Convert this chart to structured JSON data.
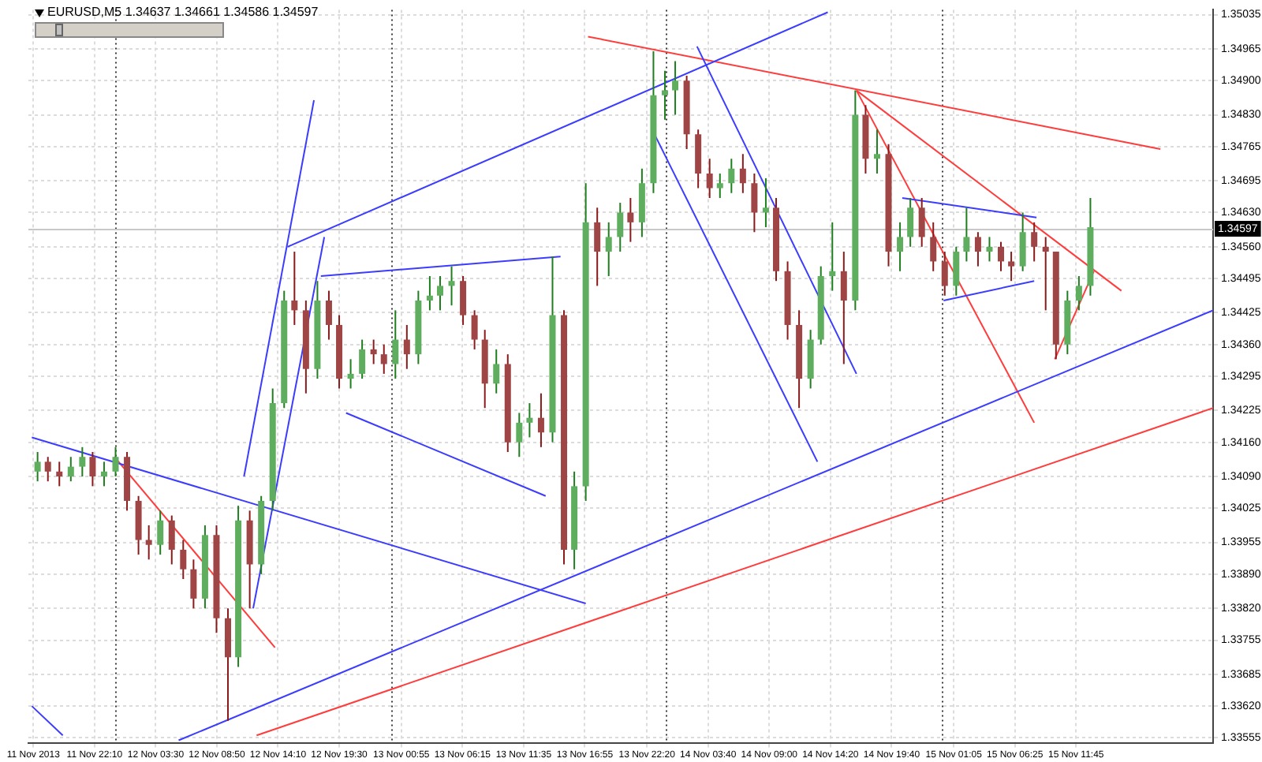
{
  "chart_data": {
    "type": "candlestick",
    "title": "EURUSD,M5 1.34637 1.34661 1.34586 1.34597",
    "x": [
      "2013-11-11T17:12",
      "2013-11-11T18:06",
      "2013-11-11T19:06",
      "2013-11-11T20:06",
      "2013-11-11T21:06",
      "2013-11-11T22:00",
      "2013-11-11T23:00",
      "2013-11-12T00:00",
      "2013-11-12T01:00",
      "2013-11-12T02:00",
      "2013-11-12T02:54",
      "2013-11-12T03:54",
      "2013-11-12T04:54",
      "2013-11-12T05:54",
      "2013-11-12T06:48",
      "2013-11-12T07:48",
      "2013-11-12T08:48",
      "2013-11-12T09:48",
      "2013-11-12T10:42",
      "2013-11-12T11:42",
      "2013-11-12T12:42",
      "2013-11-12T13:42",
      "2013-11-12T14:42",
      "2013-11-12T15:36",
      "2013-11-12T16:36",
      "2013-11-12T17:36",
      "2013-11-12T18:36",
      "2013-11-12T19:30",
      "2013-11-12T20:30",
      "2013-11-12T21:30",
      "2013-11-12T22:30",
      "2013-11-12T23:24",
      "2013-11-13T00:24",
      "2013-11-13T01:24",
      "2013-11-13T02:24",
      "2013-11-13T03:24",
      "2013-11-13T04:18",
      "2013-11-13T05:18",
      "2013-11-13T06:18",
      "2013-11-13T07:18",
      "2013-11-13T08:12",
      "2013-11-13T09:12",
      "2013-11-13T10:12",
      "2013-11-13T11:12",
      "2013-11-13T12:06",
      "2013-11-13T13:06",
      "2013-11-13T14:06",
      "2013-11-13T15:06",
      "2013-11-13T16:00",
      "2013-11-13T17:00",
      "2013-11-13T18:00",
      "2013-11-13T19:00",
      "2013-11-13T20:00",
      "2013-11-13T20:54",
      "2013-11-13T21:54",
      "2013-11-13T22:54",
      "2013-11-13T23:54",
      "2013-11-14T00:48",
      "2013-11-14T01:48",
      "2013-11-14T02:48",
      "2013-11-14T03:48",
      "2013-11-14T04:42",
      "2013-11-14T05:42",
      "2013-11-14T06:42",
      "2013-11-14T07:42",
      "2013-11-14T08:42",
      "2013-11-14T09:36",
      "2013-11-14T10:36",
      "2013-11-14T11:36",
      "2013-11-14T12:36",
      "2013-11-14T13:30",
      "2013-11-14T14:30",
      "2013-11-14T15:30",
      "2013-11-14T16:30",
      "2013-11-14T17:24",
      "2013-11-14T18:24",
      "2013-11-14T19:24",
      "2013-11-14T20:24",
      "2013-11-14T21:18",
      "2013-11-14T22:18",
      "2013-11-14T23:18",
      "2013-11-15T00:18",
      "2013-11-15T01:18",
      "2013-11-15T02:12",
      "2013-11-15T03:12",
      "2013-11-15T04:12",
      "2013-11-15T05:12",
      "2013-11-15T06:06",
      "2013-11-15T07:06",
      "2013-11-15T08:06",
      "2013-11-15T09:06",
      "2013-11-15T10:00",
      "2013-11-15T11:00",
      "2013-11-15T12:00",
      "2013-11-15T13:00"
    ],
    "ohlc": [
      [
        1.341,
        1.3414,
        1.3408,
        1.3412
      ],
      [
        1.3412,
        1.3413,
        1.3408,
        1.341
      ],
      [
        1.341,
        1.3412,
        1.3407,
        1.3409
      ],
      [
        1.3409,
        1.3413,
        1.3408,
        1.3411
      ],
      [
        1.3411,
        1.3415,
        1.3409,
        1.3413
      ],
      [
        1.3413,
        1.3414,
        1.3407,
        1.3409
      ],
      [
        1.3409,
        1.3412,
        1.3407,
        1.341
      ],
      [
        1.341,
        1.3415,
        1.3409,
        1.3413
      ],
      [
        1.3413,
        1.3414,
        1.3402,
        1.3404
      ],
      [
        1.3404,
        1.3405,
        1.3393,
        1.3396
      ],
      [
        1.3396,
        1.3399,
        1.3392,
        1.3395
      ],
      [
        1.3395,
        1.3402,
        1.3393,
        1.34
      ],
      [
        1.34,
        1.3401,
        1.3391,
        1.3394
      ],
      [
        1.3394,
        1.3396,
        1.3388,
        1.339
      ],
      [
        1.339,
        1.3392,
        1.3382,
        1.3384
      ],
      [
        1.3384,
        1.3399,
        1.3382,
        1.3397
      ],
      [
        1.3397,
        1.3399,
        1.3377,
        1.338
      ],
      [
        1.338,
        1.3382,
        1.3359,
        1.3372
      ],
      [
        1.3372,
        1.3403,
        1.337,
        1.34
      ],
      [
        1.34,
        1.3402,
        1.3382,
        1.3391
      ],
      [
        1.3391,
        1.3405,
        1.3389,
        1.3404
      ],
      [
        1.3404,
        1.3427,
        1.3402,
        1.3424
      ],
      [
        1.3424,
        1.3447,
        1.3423,
        1.3445
      ],
      [
        1.3445,
        1.3455,
        1.344,
        1.3443
      ],
      [
        1.3443,
        1.3445,
        1.3426,
        1.3431
      ],
      [
        1.3431,
        1.3449,
        1.3429,
        1.3445
      ],
      [
        1.3445,
        1.3447,
        1.3437,
        1.344
      ],
      [
        1.344,
        1.3442,
        1.3427,
        1.3429
      ],
      [
        1.3429,
        1.3433,
        1.3427,
        1.343
      ],
      [
        1.343,
        1.3437,
        1.3429,
        1.3435
      ],
      [
        1.3435,
        1.3437,
        1.3432,
        1.3434
      ],
      [
        1.3434,
        1.3436,
        1.343,
        1.3432
      ],
      [
        1.3432,
        1.3443,
        1.3429,
        1.3437
      ],
      [
        1.3437,
        1.344,
        1.3431,
        1.3434
      ],
      [
        1.3434,
        1.3447,
        1.3432,
        1.3445
      ],
      [
        1.3445,
        1.345,
        1.3443,
        1.3446
      ],
      [
        1.3446,
        1.345,
        1.3443,
        1.3448
      ],
      [
        1.3448,
        1.3452,
        1.3444,
        1.3449
      ],
      [
        1.3449,
        1.345,
        1.344,
        1.3442
      ],
      [
        1.3442,
        1.3443,
        1.3435,
        1.3437
      ],
      [
        1.3437,
        1.3439,
        1.3423,
        1.3428
      ],
      [
        1.3428,
        1.3435,
        1.3426,
        1.3432
      ],
      [
        1.3432,
        1.3434,
        1.3414,
        1.3416
      ],
      [
        1.3416,
        1.3422,
        1.3413,
        1.342
      ],
      [
        1.342,
        1.3424,
        1.3417,
        1.3421
      ],
      [
        1.3421,
        1.3426,
        1.3415,
        1.3418
      ],
      [
        1.3418,
        1.3454,
        1.3416,
        1.3442
      ],
      [
        1.3442,
        1.3443,
        1.3391,
        1.3394
      ],
      [
        1.3394,
        1.341,
        1.339,
        1.3407
      ],
      [
        1.3407,
        1.3469,
        1.3404,
        1.3461
      ],
      [
        1.3461,
        1.3464,
        1.3448,
        1.3455
      ],
      [
        1.3455,
        1.3461,
        1.345,
        1.3458
      ],
      [
        1.3458,
        1.3465,
        1.3455,
        1.3463
      ],
      [
        1.3463,
        1.3466,
        1.3457,
        1.3461
      ],
      [
        1.3461,
        1.3472,
        1.3458,
        1.3469
      ],
      [
        1.3469,
        1.3496,
        1.3467,
        1.3487
      ],
      [
        1.3487,
        1.3492,
        1.3482,
        1.3488
      ],
      [
        1.3488,
        1.3494,
        1.3483,
        1.349
      ],
      [
        1.349,
        1.3491,
        1.3476,
        1.3479
      ],
      [
        1.3479,
        1.348,
        1.3468,
        1.3471
      ],
      [
        1.3471,
        1.3474,
        1.3466,
        1.3468
      ],
      [
        1.3468,
        1.3471,
        1.3466,
        1.3469
      ],
      [
        1.3469,
        1.3474,
        1.3467,
        1.3472
      ],
      [
        1.3472,
        1.3475,
        1.3467,
        1.3469
      ],
      [
        1.3469,
        1.3471,
        1.3459,
        1.3463
      ],
      [
        1.3463,
        1.347,
        1.346,
        1.3464
      ],
      [
        1.3464,
        1.3466,
        1.3449,
        1.3451
      ],
      [
        1.3451,
        1.3453,
        1.3437,
        1.344
      ],
      [
        1.344,
        1.3443,
        1.3423,
        1.3429
      ],
      [
        1.3429,
        1.3439,
        1.3427,
        1.3437
      ],
      [
        1.3437,
        1.3452,
        1.3436,
        1.345
      ],
      [
        1.345,
        1.3461,
        1.3447,
        1.3451
      ],
      [
        1.3451,
        1.3455,
        1.3432,
        1.3445
      ],
      [
        1.3445,
        1.3488,
        1.3443,
        1.3483
      ],
      [
        1.3483,
        1.3485,
        1.3471,
        1.3474
      ],
      [
        1.3474,
        1.348,
        1.3471,
        1.3475
      ],
      [
        1.3475,
        1.3477,
        1.3452,
        1.3455
      ],
      [
        1.3455,
        1.3461,
        1.3451,
        1.3458
      ],
      [
        1.3458,
        1.3466,
        1.3456,
        1.3464
      ],
      [
        1.3464,
        1.3466,
        1.3456,
        1.3458
      ],
      [
        1.3458,
        1.3461,
        1.3451,
        1.3453
      ],
      [
        1.3453,
        1.3455,
        1.3446,
        1.3448
      ],
      [
        1.3448,
        1.3456,
        1.3446,
        1.3455
      ],
      [
        1.3455,
        1.3464,
        1.3453,
        1.3458
      ],
      [
        1.3458,
        1.3459,
        1.3452,
        1.3455
      ],
      [
        1.3455,
        1.3458,
        1.3453,
        1.3456
      ],
      [
        1.3456,
        1.3457,
        1.3451,
        1.3453
      ],
      [
        1.3453,
        1.3455,
        1.3449,
        1.3452
      ],
      [
        1.3452,
        1.3463,
        1.3451,
        1.3459
      ],
      [
        1.3459,
        1.3461,
        1.3453,
        1.3456
      ],
      [
        1.3456,
        1.3458,
        1.3443,
        1.3455
      ],
      [
        1.3455,
        1.3455,
        1.3433,
        1.3436
      ],
      [
        1.3436,
        1.3447,
        1.3434,
        1.3445
      ],
      [
        1.3445,
        1.345,
        1.3443,
        1.3448
      ],
      [
        1.3448,
        1.3466,
        1.3446,
        1.346
      ]
    ],
    "series": [
      {
        "type": "line",
        "color": "#3c3cff",
        "x": [
          "2013-11-12T15:00",
          "2013-11-14T14:06"
        ],
        "values": [
          1.3456,
          1.3504
        ]
      },
      {
        "type": "line",
        "color": "#3c3cff",
        "x": [
          "2013-11-12T05:30",
          "2013-11-15T23:42"
        ],
        "values": [
          1.3355,
          1.3443
        ]
      },
      {
        "type": "line",
        "color": "#ff3c3c",
        "x": [
          "2013-11-12T12:18",
          "2013-11-15T23:42"
        ],
        "values": [
          1.3356,
          1.3423
        ]
      },
      {
        "type": "line",
        "color": "#3c3cff",
        "x": [
          "2013-11-11T16:42",
          "2013-11-13T17:00"
        ],
        "values": [
          1.3417,
          1.3383
        ]
      },
      {
        "type": "line",
        "color": "#3c3cff",
        "x": [
          "2013-11-11T16:42",
          "2013-11-11T19:24"
        ],
        "values": [
          1.3362,
          1.3356
        ]
      },
      {
        "type": "line",
        "color": "#3c3cff",
        "x": [
          "2013-11-12T11:12",
          "2013-11-12T17:18"
        ],
        "values": [
          1.3409,
          1.3486
        ]
      },
      {
        "type": "line",
        "color": "#3c3cff",
        "x": [
          "2013-11-12T12:00",
          "2013-11-12T18:12"
        ],
        "values": [
          1.3382,
          1.3458
        ]
      },
      {
        "type": "line",
        "color": "#3c3cff",
        "x": [
          "2013-11-12T17:54",
          "2013-11-13T14:48"
        ],
        "values": [
          1.345,
          1.3454
        ]
      },
      {
        "type": "line",
        "color": "#3c3cff",
        "x": [
          "2013-11-12T20:06",
          "2013-11-13T13:30"
        ],
        "values": [
          1.3422,
          1.3405
        ]
      },
      {
        "type": "line",
        "color": "#3c3cff",
        "x": [
          "2013-11-13T23:00",
          "2013-11-14T13:12"
        ],
        "values": [
          1.3479,
          1.3412
        ]
      },
      {
        "type": "line",
        "color": "#3c3cff",
        "x": [
          "2013-11-14T02:42",
          "2013-11-14T16:36"
        ],
        "values": [
          1.3497,
          1.343
        ]
      },
      {
        "type": "line",
        "color": "#3c3cff",
        "x": [
          "2013-11-14T20:36",
          "2013-11-15T08:18"
        ],
        "values": [
          1.3466,
          1.3462
        ]
      },
      {
        "type": "line",
        "color": "#3c3cff",
        "x": [
          "2013-11-15T00:12",
          "2013-11-15T08:06"
        ],
        "values": [
          1.3445,
          1.3449
        ]
      },
      {
        "type": "line",
        "color": "#ff3c3c",
        "x": [
          "2013-11-13T17:12",
          "2013-11-15T19:06"
        ],
        "values": [
          1.3499,
          1.3476
        ]
      },
      {
        "type": "line",
        "color": "#ff3c3c",
        "x": [
          "2013-11-14T16:36",
          "2013-11-15T15:42"
        ],
        "values": [
          1.3488,
          1.3447
        ]
      },
      {
        "type": "line",
        "color": "#ff3c3c",
        "x": [
          "2013-11-14T16:36",
          "2013-11-15T08:06"
        ],
        "values": [
          1.3488,
          1.342
        ]
      },
      {
        "type": "line",
        "color": "#ff3c3c",
        "x": [
          "2013-11-15T09:54",
          "2013-11-15T13:18"
        ],
        "values": [
          1.3433,
          1.3451
        ]
      },
      {
        "type": "line",
        "color": "#ff3c3c",
        "x": [
          "2013-11-11T23:54",
          "2013-11-12T13:54"
        ],
        "values": [
          1.3413,
          1.3374
        ]
      }
    ],
    "xlim": [
      "2013-11-11T16:24",
      "2013-11-15T23:42"
    ],
    "xticks": [
      {
        "value": "2013-11-11T16:50",
        "label": "11 Nov 2013"
      },
      {
        "value": "2013-11-11T22:10",
        "label": "11 Nov 22:10"
      },
      {
        "value": "2013-11-12T03:30",
        "label": "12 Nov 03:30"
      },
      {
        "value": "2013-11-12T08:50",
        "label": "12 Nov 08:50"
      },
      {
        "value": "2013-11-12T14:10",
        "label": "12 Nov 14:10"
      },
      {
        "value": "2013-11-12T19:30",
        "label": "12 Nov 19:30"
      },
      {
        "value": "2013-11-13T00:55",
        "label": "13 Nov 00:55"
      },
      {
        "value": "2013-11-13T06:15",
        "label": "13 Nov 06:15"
      },
      {
        "value": "2013-11-13T11:35",
        "label": "13 Nov 11:35"
      },
      {
        "value": "2013-11-13T16:55",
        "label": "13 Nov 16:55"
      },
      {
        "value": "2013-11-13T22:20",
        "label": "13 Nov 22:20"
      },
      {
        "value": "2013-11-14T03:40",
        "label": "14 Nov 03:40"
      },
      {
        "value": "2013-11-14T09:00",
        "label": "14 Nov 09:00"
      },
      {
        "value": "2013-11-14T14:20",
        "label": "14 Nov 14:20"
      },
      {
        "value": "2013-11-14T19:40",
        "label": "14 Nov 19:40"
      },
      {
        "value": "2013-11-15T01:05",
        "label": "15 Nov 01:05"
      },
      {
        "value": "2013-11-15T06:25",
        "label": "15 Nov 06:25"
      },
      {
        "value": "2013-11-15T11:45",
        "label": "15 Nov 11:45"
      }
    ],
    "ylim": [
      1.33545,
      1.35045
    ],
    "yticks": [
      1.35035,
      1.34965,
      {
        "value": 1.349,
        "label": "1.34900"
      },
      {
        "value": 1.3483,
        "label": "1.34830"
      },
      1.34765,
      1.34695,
      {
        "value": 1.3463,
        "label": "1.34630"
      },
      {
        "value": 1.3456,
        "label": "1.34560"
      },
      1.34495,
      1.34425,
      {
        "value": 1.3436,
        "label": "1.34360"
      },
      1.34295,
      1.34225,
      {
        "value": 1.3416,
        "label": "1.34160"
      },
      {
        "value": 1.3409,
        "label": "1.34090"
      },
      1.34025,
      1.33955,
      {
        "value": 1.3389,
        "label": "1.33890"
      },
      {
        "value": 1.3382,
        "label": "1.33820"
      },
      1.33755,
      1.33685,
      {
        "value": 1.3362,
        "label": "1.33620"
      },
      1.33555
    ],
    "ref_lines": [
      {
        "axis": "x",
        "value": "2013-11-12T00:00",
        "color": "#404040",
        "line_style": "dotted"
      },
      {
        "axis": "x",
        "value": "2013-11-13T00:00",
        "color": "#404040",
        "line_style": "dotted"
      },
      {
        "axis": "x",
        "value": "2013-11-14T00:00",
        "color": "#404040",
        "line_style": "dotted"
      },
      {
        "axis": "x",
        "value": "2013-11-15T00:00",
        "color": "#404040",
        "line_style": "dotted"
      },
      {
        "axis": "y",
        "value": 1.34597,
        "label": "1.34597",
        "color": "#c8c8c8",
        "line_style": "solid"
      }
    ],
    "grid": true,
    "marker": "none",
    "line_style": "solid"
  }
}
